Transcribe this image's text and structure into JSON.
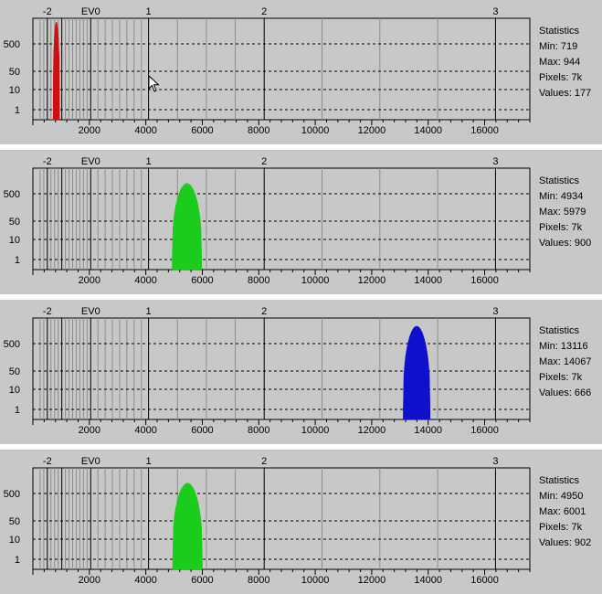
{
  "chart_data": [
    {
      "type": "area",
      "title": "",
      "xlabel": "",
      "ylabel": "",
      "xlim": [
        0,
        17600
      ],
      "y_scale": "log",
      "x_ticks": [
        2000,
        4000,
        6000,
        8000,
        10000,
        12000,
        14000,
        16000
      ],
      "x_tick_labels": [
        "2000",
        "4000",
        "6000",
        "8000",
        "10000",
        "12000",
        "14000",
        "16000"
      ],
      "ev_ticks": [
        {
          "x": 512,
          "label": "-2"
        },
        {
          "x": 1024,
          "label": ""
        },
        {
          "x": 2048,
          "label": "EV0"
        },
        {
          "x": 4096,
          "label": "1"
        },
        {
          "x": 8192,
          "label": "2"
        },
        {
          "x": 16384,
          "label": "3"
        }
      ],
      "y_tick_labels": [
        "500",
        "50",
        "10",
        "1"
      ],
      "series": [
        {
          "color": "#cc1010",
          "x_min": 719,
          "x_max": 944,
          "peak": 1000
        }
      ],
      "stats": {
        "title": "Statistics",
        "min": "Min: 719",
        "max": "Max: 944",
        "pixels": "Pixels: 7k",
        "values": "Values: 177"
      }
    },
    {
      "type": "area",
      "title": "",
      "xlabel": "",
      "ylabel": "",
      "xlim": [
        0,
        17600
      ],
      "y_scale": "log",
      "x_ticks": [
        2000,
        4000,
        6000,
        8000,
        10000,
        12000,
        14000,
        16000
      ],
      "x_tick_labels": [
        "2000",
        "4000",
        "6000",
        "8000",
        "10000",
        "12000",
        "14000",
        "16000"
      ],
      "ev_ticks": [
        {
          "x": 512,
          "label": "-2"
        },
        {
          "x": 1024,
          "label": ""
        },
        {
          "x": 2048,
          "label": "EV0"
        },
        {
          "x": 4096,
          "label": "1"
        },
        {
          "x": 8192,
          "label": "2"
        },
        {
          "x": 16384,
          "label": "3"
        }
      ],
      "y_tick_labels": [
        "500",
        "50",
        "10",
        "1"
      ],
      "series": [
        {
          "color": "#1ccc1c",
          "x_min": 4934,
          "x_max": 5979,
          "peak": 400
        }
      ],
      "stats": {
        "title": "Statistics",
        "min": "Min: 4934",
        "max": "Max: 5979",
        "pixels": "Pixels: 7k",
        "values": "Values: 900"
      }
    },
    {
      "type": "area",
      "title": "",
      "xlabel": "",
      "ylabel": "",
      "xlim": [
        0,
        17600
      ],
      "y_scale": "log",
      "x_ticks": [
        2000,
        4000,
        6000,
        8000,
        10000,
        12000,
        14000,
        16000
      ],
      "x_tick_labels": [
        "2000",
        "4000",
        "6000",
        "8000",
        "10000",
        "12000",
        "14000",
        "16000"
      ],
      "ev_ticks": [
        {
          "x": 512,
          "label": "-2"
        },
        {
          "x": 1024,
          "label": ""
        },
        {
          "x": 2048,
          "label": "EV0"
        },
        {
          "x": 4096,
          "label": "1"
        },
        {
          "x": 8192,
          "label": "2"
        },
        {
          "x": 16384,
          "label": "3"
        }
      ],
      "y_tick_labels": [
        "500",
        "50",
        "10",
        "1"
      ],
      "series": [
        {
          "color": "#1010cc",
          "x_min": 13116,
          "x_max": 14067,
          "peak": 700
        }
      ],
      "stats": {
        "title": "Statistics",
        "min": "Min: 13116",
        "max": "Max: 14067",
        "pixels": "Pixels: 7k",
        "values": "Values: 666"
      }
    },
    {
      "type": "area",
      "title": "",
      "xlabel": "",
      "ylabel": "",
      "xlim": [
        0,
        17600
      ],
      "y_scale": "log",
      "x_ticks": [
        2000,
        4000,
        6000,
        8000,
        10000,
        12000,
        14000,
        16000
      ],
      "x_tick_labels": [
        "2000",
        "4000",
        "6000",
        "8000",
        "10000",
        "12000",
        "14000",
        "16000"
      ],
      "ev_ticks": [
        {
          "x": 512,
          "label": "-2"
        },
        {
          "x": 1024,
          "label": ""
        },
        {
          "x": 2048,
          "label": "EV0"
        },
        {
          "x": 4096,
          "label": "1"
        },
        {
          "x": 8192,
          "label": "2"
        },
        {
          "x": 16384,
          "label": "3"
        }
      ],
      "y_tick_labels": [
        "500",
        "50",
        "10",
        "1"
      ],
      "series": [
        {
          "color": "#1ccc1c",
          "x_min": 4950,
          "x_max": 6001,
          "peak": 400
        }
      ],
      "stats": {
        "title": "Statistics",
        "min": "Min: 4950",
        "max": "Max: 6001",
        "pixels": "Pixels: 7k",
        "values": "Values: 902"
      }
    }
  ]
}
